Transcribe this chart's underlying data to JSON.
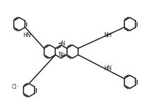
{
  "bg_color": "#ffffff",
  "line_color": "#1a1a1a",
  "line_width": 1.1,
  "dbo": 0.016,
  "rc": 0.095,
  "fig_width": 2.2,
  "fig_height": 1.57,
  "dpi": 100,
  "xlim": [
    0,
    2.2
  ],
  "ylim": [
    0,
    1.57
  ]
}
